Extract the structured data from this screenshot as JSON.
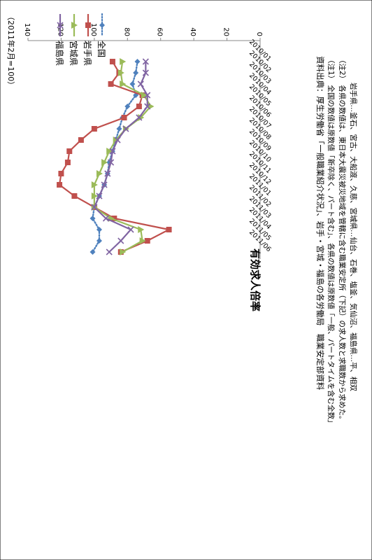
{
  "chart_data": {
    "type": "line",
    "title": "有効求人倍率",
    "unit_label": "（2011年2月=100）",
    "ylim": [
      0,
      140
    ],
    "y_ticks": [
      0,
      20,
      40,
      60,
      80,
      100,
      120,
      140
    ],
    "grid": false,
    "legend_position": "top-right",
    "categories": [
      "2010/01",
      "2010/02",
      "2010/03",
      "2010/04",
      "2010/05",
      "2010/06",
      "2010/07",
      "2010/08",
      "2010/09",
      "2010/10",
      "2010/11",
      "2010/12",
      "2011/01",
      "2011/02",
      "2011/03",
      "2011/04",
      "2011/05",
      "2011/06"
    ],
    "series": [
      {
        "name": "全国",
        "color": "#4f81bd",
        "marker": "diamond",
        "dash": "dot",
        "values": [
          74,
          75,
          77,
          75,
          80,
          83,
          85,
          87,
          89,
          91,
          92,
          94,
          97,
          100,
          101,
          97,
          97,
          101
        ]
      },
      {
        "name": "岩手県",
        "color": "#c0504d",
        "marker": "square",
        "dash": "solid",
        "values": [
          89,
          85,
          90,
          71,
          73,
          82,
          100,
          108,
          115,
          116,
          120,
          121,
          112,
          100,
          88,
          55,
          68,
          84
        ]
      },
      {
        "name": "宮城県",
        "color": "#9bbb59",
        "marker": "triangle",
        "dash": "solid",
        "values": [
          83,
          84,
          83,
          70,
          66,
          72,
          81,
          87,
          91,
          94,
          97,
          100,
          100,
          100,
          90,
          72,
          71,
          83
        ]
      },
      {
        "name": "福島県",
        "color": "#8064a2",
        "marker": "x",
        "dash": "solid",
        "values": [
          69,
          69,
          72,
          68,
          68,
          73,
          81,
          86,
          89,
          90,
          92,
          94,
          97,
          100,
          93,
          78,
          84,
          91
        ]
      }
    ]
  },
  "notes": [
    "資料出典：厚生労働省「一般職業紹介状況」、岩手・宮城・福島の各労働局　職業安定部資料",
    "（注1） 全国の数値は原数値「新卒除く、パート含む」、各県の数値は原数値「一般、パートタイムを含む全数」",
    "（注2） 各県の数値は、東日本大震災被災地域を管轄に含む職業安定所（下記）の求人数と求職数から求めた。",
    "岩手県…釜石、宮古、大船渡、久慈、宮城県…仙台、石巻、塩釜、気仙沼、福島県…平、相双"
  ]
}
